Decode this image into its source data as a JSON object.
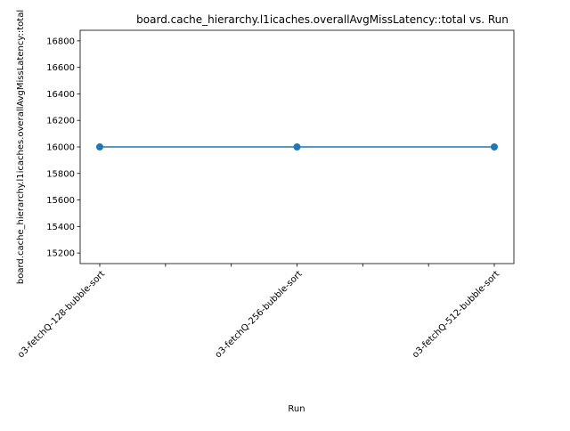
{
  "chart_data": {
    "type": "line",
    "title": "board.cache_hierarchy.l1icaches.overallAvgMissLatency::total vs. Run",
    "xlabel": "Run",
    "ylabel": "board.cache_hierarchy.l1icaches.overallAvgMissLatency::total",
    "categories": [
      "o3-fetchQ-128-bubble-sort",
      "o3-fetchQ-256-bubble-sort",
      "o3-fetchQ-512-bubble-sort"
    ],
    "series": [
      {
        "values": [
          16000,
          16000,
          16000
        ],
        "color": "#1f77b4",
        "marker": "circle"
      }
    ],
    "ylim": [
      15120,
      16880
    ],
    "yticks": [
      15200,
      15400,
      15600,
      15800,
      16000,
      16200,
      16400,
      16600,
      16800
    ],
    "x_minor_ticks": 2,
    "tick_label_rotation": 45,
    "grid": false,
    "legend": "none"
  }
}
